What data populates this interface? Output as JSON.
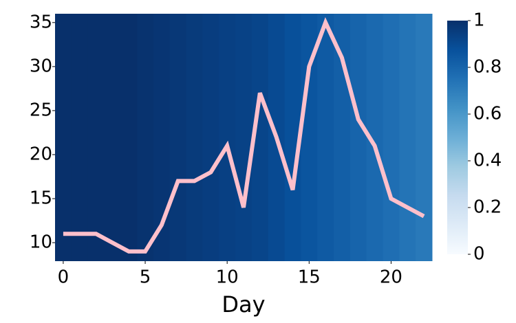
{
  "chart_data": {
    "type": "line",
    "xlabel": "Day",
    "x": [
      0,
      1,
      2,
      3,
      4,
      5,
      6,
      7,
      8,
      9,
      10,
      11,
      12,
      13,
      14,
      15,
      16,
      17,
      18,
      19,
      20,
      21,
      22
    ],
    "values": [
      11,
      11,
      11,
      10,
      9,
      9,
      12,
      17,
      17,
      18,
      21,
      14,
      27,
      22,
      16,
      30,
      35,
      31,
      24,
      21,
      15,
      14,
      13
    ],
    "color": "#ffc0cb",
    "xlim": [
      -0.5,
      22.5
    ],
    "ylim": [
      7.9,
      36
    ],
    "xticks": [
      0,
      5,
      10,
      15,
      20
    ],
    "yticks": [
      10,
      15,
      20,
      25,
      30,
      35
    ],
    "background": {
      "values": [
        1,
        1,
        1,
        1,
        1,
        0.99,
        0.98,
        0.97,
        0.96,
        0.95,
        0.94,
        0.93,
        0.92,
        0.9,
        0.88,
        0.86,
        0.84,
        0.82,
        0.8,
        0.78,
        0.76,
        0.74,
        0.72
      ],
      "colormap": "Blues",
      "clim": [
        0,
        1
      ],
      "ticks": [
        0,
        0.2,
        0.4,
        0.6,
        0.8,
        1
      ]
    }
  }
}
